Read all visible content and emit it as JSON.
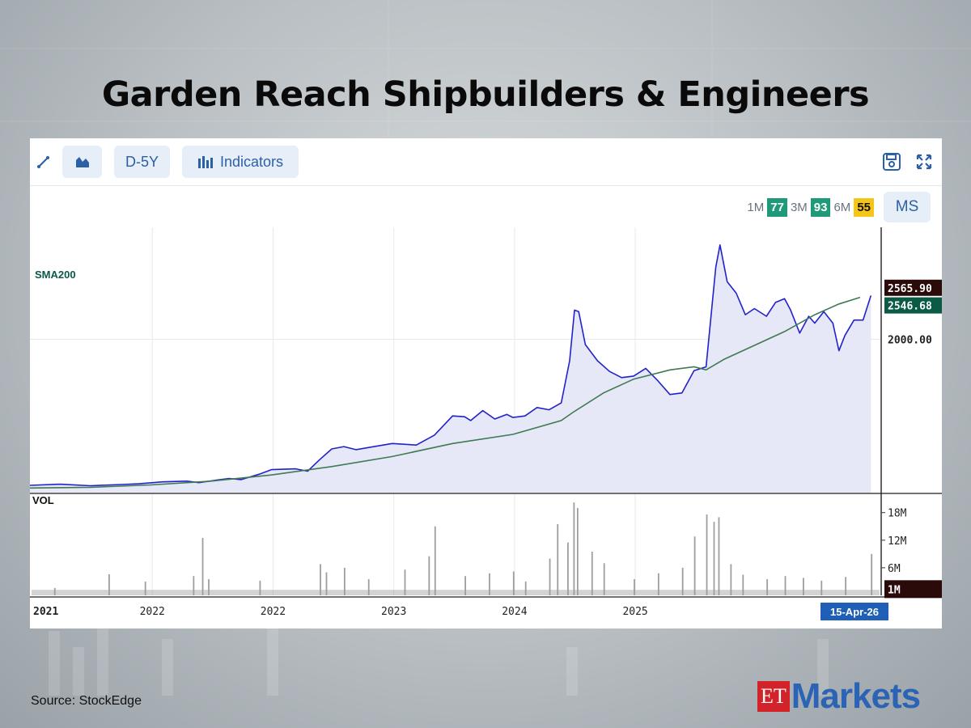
{
  "title": "Garden Reach Shipbuilders & Engineers",
  "source": "Source:  StockEdge",
  "logo": {
    "et": "ET",
    "markets": "Markets"
  },
  "toolbar": {
    "period_label": "D-5Y",
    "indicators_label": "Indicators",
    "icons": [
      "line-draw-icon",
      "area-chart-icon",
      "bar-chart-icon",
      "save-icon",
      "expand-icon"
    ]
  },
  "scores": [
    {
      "label": "1M",
      "value": "77",
      "color": "#1e9a78"
    },
    {
      "label": "3M",
      "value": "93",
      "color": "#1e9a78"
    },
    {
      "label": "6M",
      "value": "55",
      "color": "#f5c518"
    }
  ],
  "ms_label": "MS",
  "chart_data": {
    "type": "line",
    "x_tick_labels": [
      "2021",
      "2022",
      "2022",
      "2023",
      "2024",
      "2025"
    ],
    "cursor_date_label": "15-Apr-26",
    "price_ylim": [
      0,
      3460
    ],
    "price_y_gridline": 2000,
    "price_y_tick_labels": [
      "2000.00"
    ],
    "series": [
      {
        "name": "",
        "style": "area",
        "color": "#2222cc",
        "values": [
          [
            0,
            95
          ],
          [
            5,
            110
          ],
          [
            10,
            90
          ],
          [
            15,
            105
          ],
          [
            18,
            115
          ],
          [
            22,
            140
          ],
          [
            26,
            150
          ],
          [
            28,
            130
          ],
          [
            31,
            165
          ],
          [
            33,
            185
          ],
          [
            35,
            170
          ],
          [
            38,
            240
          ],
          [
            40,
            300
          ],
          [
            42,
            305
          ],
          [
            44,
            310
          ],
          [
            46,
            280
          ],
          [
            48,
            430
          ],
          [
            50,
            570
          ],
          [
            52,
            600
          ],
          [
            54,
            560
          ],
          [
            57,
            600
          ],
          [
            60,
            640
          ],
          [
            64,
            620
          ],
          [
            67,
            750
          ],
          [
            70,
            1000
          ],
          [
            72,
            990
          ],
          [
            73,
            940
          ],
          [
            75,
            1070
          ],
          [
            77,
            960
          ],
          [
            79,
            1020
          ],
          [
            80,
            980
          ],
          [
            82,
            1000
          ],
          [
            84,
            1110
          ],
          [
            86,
            1080
          ],
          [
            88,
            1170
          ],
          [
            89.4,
            1720
          ],
          [
            90.2,
            2380
          ],
          [
            90.9,
            2360
          ],
          [
            92,
            1930
          ],
          [
            94,
            1720
          ],
          [
            96,
            1580
          ],
          [
            98,
            1500
          ],
          [
            100,
            1520
          ],
          [
            102,
            1620
          ],
          [
            104,
            1460
          ],
          [
            106,
            1280
          ],
          [
            108,
            1300
          ],
          [
            110,
            1590
          ],
          [
            112,
            1640
          ],
          [
            113.6,
            2940
          ],
          [
            114.3,
            3230
          ],
          [
            115.5,
            2750
          ],
          [
            117,
            2600
          ],
          [
            118.5,
            2320
          ],
          [
            120,
            2400
          ],
          [
            122,
            2300
          ],
          [
            123.5,
            2480
          ],
          [
            125,
            2530
          ],
          [
            126,
            2380
          ],
          [
            127.5,
            2080
          ],
          [
            129,
            2300
          ],
          [
            130,
            2210
          ],
          [
            131.5,
            2360
          ],
          [
            133,
            2210
          ],
          [
            134,
            1850
          ],
          [
            135,
            2050
          ],
          [
            136.5,
            2250
          ],
          [
            138,
            2250
          ],
          [
            139.3,
            2570
          ]
        ]
      },
      {
        "name": "SMA200",
        "style": "line",
        "color": "#3f7a52",
        "values": [
          [
            0,
            60
          ],
          [
            10,
            70
          ],
          [
            20,
            100
          ],
          [
            30,
            150
          ],
          [
            40,
            230
          ],
          [
            50,
            340
          ],
          [
            60,
            470
          ],
          [
            70,
            640
          ],
          [
            80,
            760
          ],
          [
            88,
            940
          ],
          [
            90,
            1050
          ],
          [
            95,
            1300
          ],
          [
            100,
            1480
          ],
          [
            106,
            1600
          ],
          [
            110,
            1640
          ],
          [
            112,
            1600
          ],
          [
            115,
            1740
          ],
          [
            120,
            1920
          ],
          [
            125,
            2100
          ],
          [
            130,
            2320
          ],
          [
            134,
            2460
          ],
          [
            137.5,
            2546.68
          ]
        ]
      }
    ],
    "price_badges": [
      {
        "label": "2565.90",
        "value": 2565.9,
        "color": "#2b0a0a"
      },
      {
        "label": "2546.68",
        "value": 2546.68,
        "color": "#0b5a46"
      }
    ],
    "volume": {
      "label": "VOL",
      "ylim": [
        0,
        22
      ],
      "y_tick_labels": [
        "18M",
        "12M",
        "6M"
      ],
      "y_ticks": [
        18,
        12,
        6
      ],
      "current_label": "1M",
      "current_value": 1,
      "color": "#9e9e9e",
      "spikes": [
        [
          4,
          1.6
        ],
        [
          13,
          4.6
        ],
        [
          19,
          3.0
        ],
        [
          27,
          4.2
        ],
        [
          28.5,
          12.5
        ],
        [
          29.5,
          3.5
        ],
        [
          38,
          3.2
        ],
        [
          48,
          6.8
        ],
        [
          49,
          5.0
        ],
        [
          52,
          6.0
        ],
        [
          56,
          3.5
        ],
        [
          62,
          5.6
        ],
        [
          66,
          8.5
        ],
        [
          67,
          15.0
        ],
        [
          72,
          4.2
        ],
        [
          76,
          4.8
        ],
        [
          80,
          5.2
        ],
        [
          82,
          3.0
        ],
        [
          86,
          8.0
        ],
        [
          87.3,
          15.5
        ],
        [
          89,
          11.5
        ],
        [
          90,
          20.2
        ],
        [
          90.6,
          19.0
        ],
        [
          93,
          9.5
        ],
        [
          95,
          7.0
        ],
        [
          100,
          3.5
        ],
        [
          104,
          4.8
        ],
        [
          108,
          6.0
        ],
        [
          110,
          12.8
        ],
        [
          112,
          17.6
        ],
        [
          113.2,
          16.0
        ],
        [
          114,
          17.0
        ],
        [
          116,
          6.8
        ],
        [
          118,
          4.5
        ],
        [
          122,
          3.5
        ],
        [
          125,
          4.2
        ],
        [
          128,
          3.8
        ],
        [
          131,
          3.2
        ],
        [
          135,
          4.0
        ],
        [
          139.3,
          9.0
        ]
      ]
    }
  }
}
